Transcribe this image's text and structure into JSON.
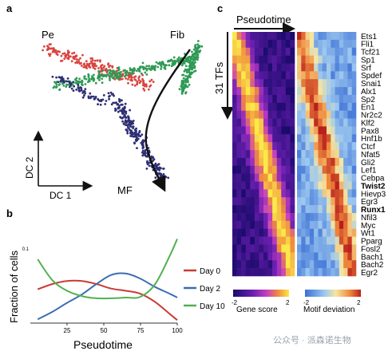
{
  "panels": {
    "a": {
      "letter": "a",
      "labels": {
        "pe": "Pe",
        "fib": "Fib",
        "mf": "MF",
        "dc1": "DC 1",
        "dc2": "DC 2"
      },
      "colors": {
        "pe": "#d8453f",
        "fib": "#2f9a55",
        "mf": "#2d2f74",
        "arrow": "#111111"
      }
    },
    "b": {
      "letter": "b",
      "ylabel": "Fraction of cells",
      "xlabel": "Pseudotime",
      "ytick": "0.1"
    },
    "c": {
      "letter": "c",
      "pseudotime_label": "Pseudotime",
      "tfs_label": "31 TFs",
      "tfs": [
        "Ets1",
        "Fli1",
        "Tcf21",
        "Sp1",
        "Srf",
        "Spdef",
        "Snai1",
        "Alx1",
        "Sp2",
        "En1",
        "Nr2c2",
        "Klf2",
        "Pax8",
        "Hnf1b",
        "Ctcf",
        "Nfat5",
        "Gli2",
        "Lef1",
        "Cebpa",
        "Twist2",
        "Hievp3",
        "Egr3",
        "Runx1",
        "Nfil3",
        "Myc",
        "Wt1",
        "Pparg",
        "Fosl2",
        "Bach1",
        "Bach2",
        "Egr2"
      ],
      "bold_tfs": [
        "Twist2",
        "Runx1"
      ],
      "gene_score_legend": {
        "label": "Gene score",
        "min": "-2",
        "max": "2"
      },
      "motif_legend": {
        "label": "Motif deviation",
        "min": "-2",
        "max": "2"
      }
    }
  },
  "chart_data": {
    "type": "line",
    "xlabel": "Pseudotime",
    "ylabel": "Fraction of cells",
    "x": [
      5,
      15,
      25,
      35,
      45,
      55,
      65,
      75,
      85,
      95,
      100
    ],
    "xticks": [
      25,
      50,
      75,
      100
    ],
    "xlim": [
      0,
      100
    ],
    "ylim": [
      0,
      0.12
    ],
    "yticks": [
      0.1
    ],
    "series": [
      {
        "name": "Day 0",
        "color": "#c83b36",
        "values": [
          0.045,
          0.052,
          0.056,
          0.056,
          0.052,
          0.046,
          0.043,
          0.039,
          0.028,
          0.012,
          0.004
        ]
      },
      {
        "name": "Day 2",
        "color": "#3b6db4",
        "values": [
          0.005,
          0.015,
          0.027,
          0.038,
          0.052,
          0.064,
          0.066,
          0.059,
          0.048,
          0.039,
          0.034
        ]
      },
      {
        "name": "Day 10",
        "color": "#52b052",
        "values": [
          0.085,
          0.057,
          0.043,
          0.036,
          0.033,
          0.033,
          0.034,
          0.035,
          0.052,
          0.09,
          0.112
        ]
      }
    ]
  },
  "watermark": "公众号 · 派森诺生物"
}
